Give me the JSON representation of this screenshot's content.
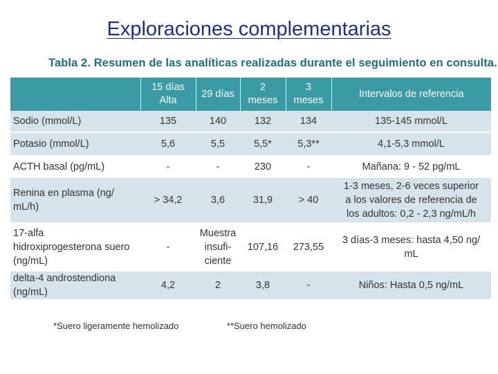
{
  "slide_title": "Exploraciones complementarias",
  "table_caption": "Tabla 2. Resumen de las analíticas realizadas durante el seguimiento en consulta.",
  "table": {
    "headers": [
      "",
      "15 días\nAlta",
      "29 días",
      "2\nmeses",
      "3\nmeses",
      "Intervalos de referencia"
    ],
    "rows": [
      [
        "Sodio (mmol/L)",
        "135",
        "140",
        "132",
        "134",
        "135-145 mmol/L"
      ],
      [
        "Potasio (mmol/L)",
        "5,6",
        "5,5",
        "5,5*",
        "5,3**",
        "4,1-5,3 mmol/L"
      ],
      [
        "ACTH basal (pg/mL)",
        "-",
        "-",
        "230",
        "-",
        "Mañana: 9 - 52 pg/mL"
      ],
      [
        "Renina en plasma (ng/\nmL/h)",
        "> 34,2",
        "3,6",
        "31,9",
        "> 40",
        "1-3 meses, 2-6 veces superior\na los valores de referencia de\nlos adultos: 0,2 - 2,3 ng/mL/h"
      ],
      [
        "17-alfa\nhidroxiprogesterona suero\n(ng/mL)",
        "-",
        "Muestra\ninsufi-\nciente",
        "107,16",
        "273,55",
        "3 días-3 meses: hasta 4,50 ng/\nmL"
      ],
      [
        "delta-4 androstendiona\n(ng/mL)",
        "4,2",
        "2",
        "3,8",
        "-",
        "Niños: Hasta 0,5 ng/mL"
      ]
    ]
  },
  "footnotes": {
    "note1": "*Suero ligeramente hemolizado",
    "note2": "**Suero hemolizado"
  },
  "colors": {
    "title": "#1f2d8c",
    "caption": "#1e6f80",
    "header_bg": "#3a9ba4",
    "row_shade": "#d5e4ea"
  }
}
